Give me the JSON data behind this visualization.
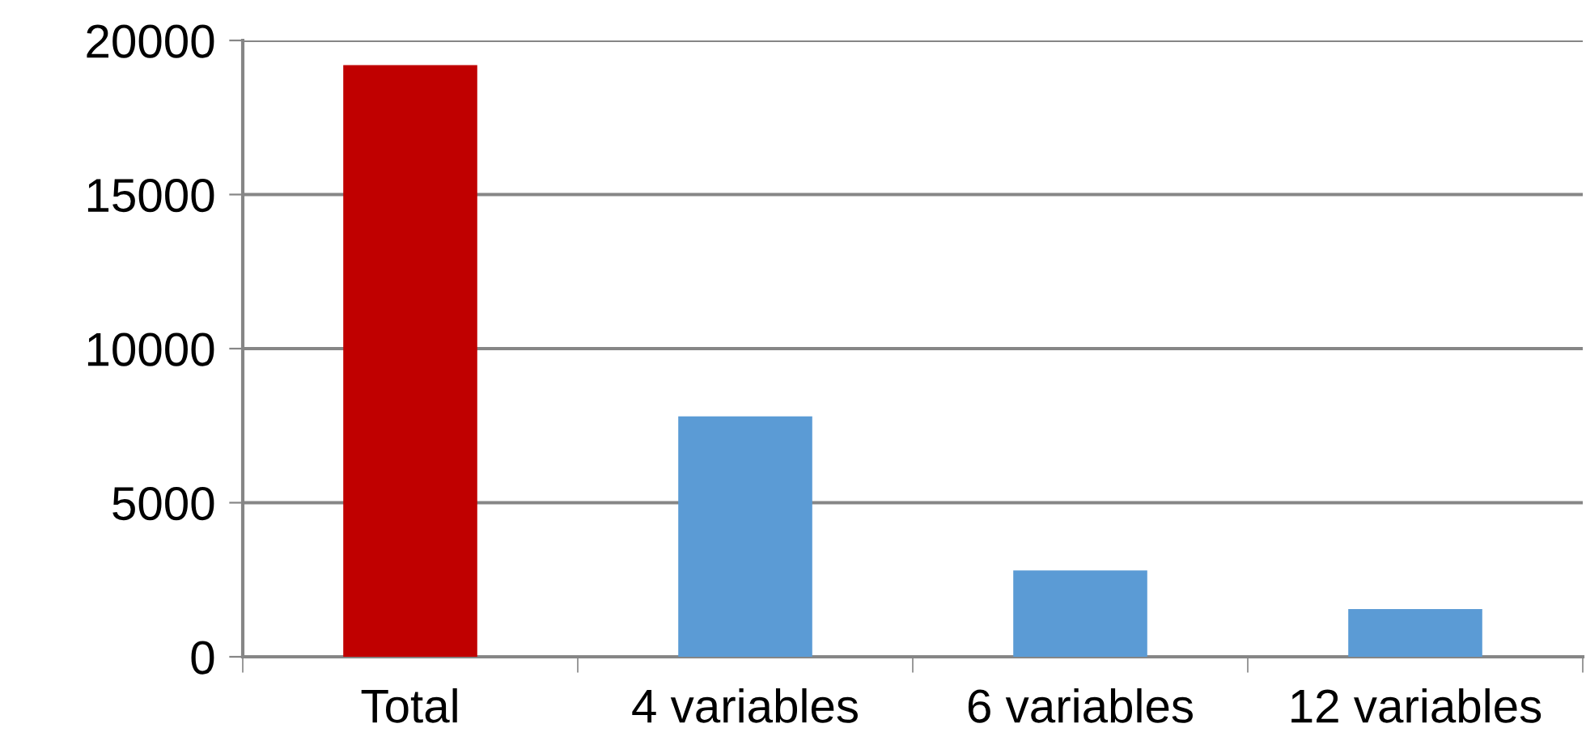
{
  "chart_data": {
    "type": "bar",
    "categories": [
      "Total",
      "4 variables",
      "6 variables",
      "12 variables"
    ],
    "values": [
      19200,
      7800,
      2800,
      1550
    ],
    "colors": [
      "#c00000",
      "#5b9bd5",
      "#5b9bd5",
      "#5b9bd5"
    ],
    "ylim": [
      0,
      20000
    ],
    "yticks": [
      0,
      5000,
      10000,
      15000,
      20000
    ],
    "grid": "y"
  }
}
